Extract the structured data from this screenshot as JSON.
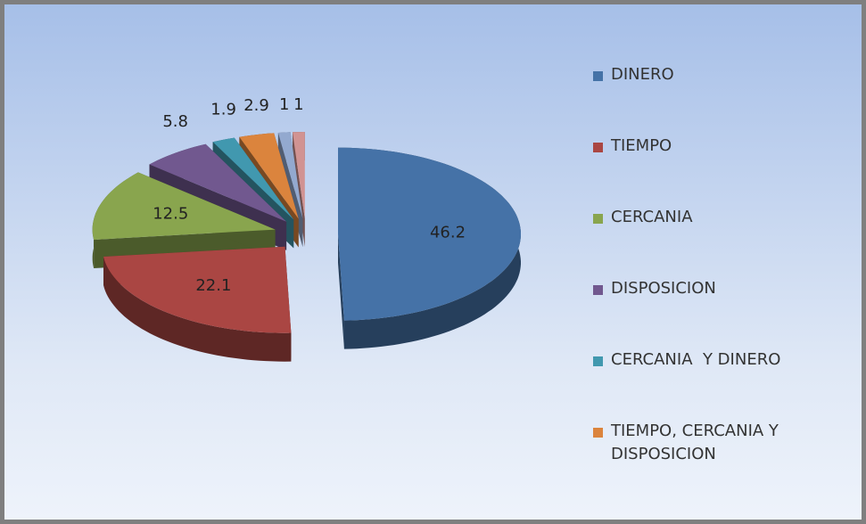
{
  "chart_data": {
    "type": "pie3d",
    "categories": [
      "DINERO",
      "TIEMPO",
      "CERCANIA",
      "DISPOSICION",
      "CERCANIA  Y DINERO",
      "TIEMPO, CERCANIA Y DISPOSICION",
      null,
      null
    ],
    "values": [
      46.2,
      22.1,
      12.5,
      5.8,
      1.9,
      2.9,
      1,
      1
    ],
    "colors": [
      "#4572a7",
      "#aa4643",
      "#89a54e",
      "#71588f",
      "#4198af",
      "#db843d",
      "#93a9cf",
      "#d19392"
    ],
    "legend": "right"
  }
}
